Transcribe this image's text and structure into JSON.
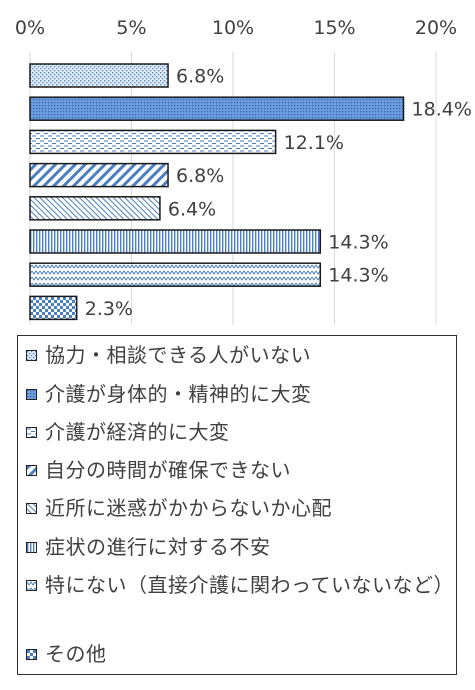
{
  "chart_data": {
    "type": "bar",
    "orientation": "horizontal",
    "xlim": [
      0,
      20
    ],
    "xticks": [
      "0%",
      "5%",
      "10%",
      "15%",
      "20%"
    ],
    "grid": true,
    "legend_position": "bottom",
    "series": [
      {
        "name": "協力・相談できる人がいない",
        "value": 6.8,
        "label": "6.8%",
        "pattern": "dots-light",
        "fill": "#d6e4f2"
      },
      {
        "name": "介護が身体的・精神的に大変",
        "value": 18.4,
        "label": "18.4%",
        "pattern": "dots-dense",
        "fill": "#5b8fd6"
      },
      {
        "name": "介護が経済的に大変",
        "value": 12.1,
        "label": "12.1%",
        "pattern": "dashes",
        "fill": "#ffffff"
      },
      {
        "name": "自分の時間が確保できない",
        "value": 6.8,
        "label": "6.8%",
        "pattern": "diagonal",
        "fill": "#ffffff"
      },
      {
        "name": "近所に迷惑がかからないか心配",
        "value": 6.4,
        "label": "6.4%",
        "pattern": "fine-diagonal",
        "fill": "#ffffff"
      },
      {
        "name": "症状の進行に対する不安",
        "value": 14.3,
        "label": "14.3%",
        "pattern": "vertical",
        "fill": "#d6e4f2"
      },
      {
        "name": "特にない（直接介護に関わっていないなど）",
        "value": 14.3,
        "label": "14.3%",
        "pattern": "zigzag",
        "fill": "#ffffff"
      },
      {
        "name": "その他",
        "value": 2.3,
        "label": "2.3%",
        "pattern": "checker",
        "fill": "#cfe0f2"
      }
    ]
  },
  "colors": {
    "pattern_ink": "#4a7fc1",
    "bar_border": "#1a1a1a",
    "grid": "#d9d9d9",
    "text": "#404040"
  },
  "legend": {
    "items": [
      {
        "label": "協力・相談できる人がいない"
      },
      {
        "label": "介護が身体的・精神的に大変"
      },
      {
        "label": "介護が経済的に大変"
      },
      {
        "label": "自分の時間が確保できない"
      },
      {
        "label": "近所に迷惑がかからないか心配"
      },
      {
        "label": "症状の進行に対する不安"
      },
      {
        "label": "特にない（直接介護に関わっていないなど）"
      },
      {
        "label": "その他"
      }
    ]
  }
}
